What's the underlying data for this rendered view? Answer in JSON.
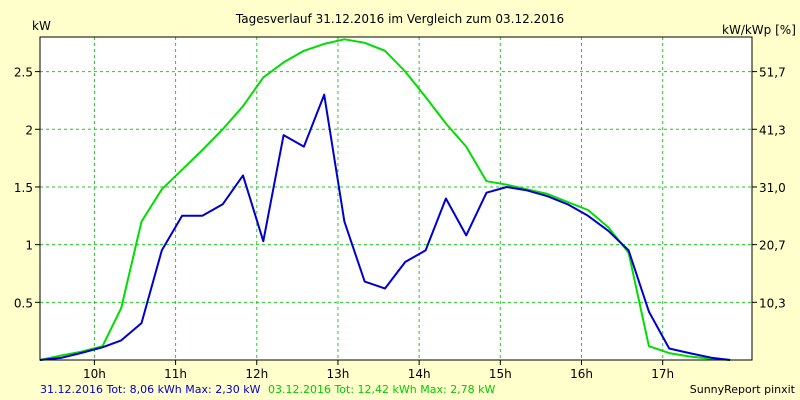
{
  "chart_data": {
    "type": "line",
    "title": "Tagesverlauf 31.12.2016 im Vergleich zum 03.12.2016",
    "ylabel_left": "kW",
    "ylabel_right": "kW/kWp [%]",
    "xlim": [
      9.33,
      18.1
    ],
    "ylim": [
      0,
      2.8
    ],
    "grid": true,
    "x_ticks": [
      {
        "v": 10,
        "label": "10h"
      },
      {
        "v": 11,
        "label": "11h"
      },
      {
        "v": 12,
        "label": "12h"
      },
      {
        "v": 13,
        "label": "13h"
      },
      {
        "v": 14,
        "label": "14h"
      },
      {
        "v": 15,
        "label": "15h"
      },
      {
        "v": 16,
        "label": "16h"
      },
      {
        "v": 17,
        "label": "17h"
      }
    ],
    "y_ticks": [
      {
        "v": 0.5,
        "label": "0.5"
      },
      {
        "v": 1,
        "label": "1"
      },
      {
        "v": 1.5,
        "label": "1.5"
      },
      {
        "v": 2,
        "label": "2"
      },
      {
        "v": 2.5,
        "label": "2.5"
      }
    ],
    "y_ticks_right": [
      {
        "v": 0.5,
        "label": "10,3"
      },
      {
        "v": 1,
        "label": "20,7"
      },
      {
        "v": 1.5,
        "label": "31,0"
      },
      {
        "v": 2,
        "label": "41,3"
      },
      {
        "v": 2.5,
        "label": "51,7"
      }
    ],
    "series": [
      {
        "name": "31.12.2016 Tot: 8,06 kWh Max: 2,30 kW",
        "color": "#0000cc",
        "points": [
          [
            9.33,
            0.0
          ],
          [
            9.6,
            0.02
          ],
          [
            9.83,
            0.06
          ],
          [
            10.1,
            0.11
          ],
          [
            10.33,
            0.17
          ],
          [
            10.58,
            0.32
          ],
          [
            10.83,
            0.95
          ],
          [
            11.08,
            1.25
          ],
          [
            11.33,
            1.25
          ],
          [
            11.58,
            1.35
          ],
          [
            11.83,
            1.6
          ],
          [
            12.08,
            1.03
          ],
          [
            12.33,
            1.95
          ],
          [
            12.58,
            1.85
          ],
          [
            12.83,
            2.3
          ],
          [
            13.08,
            1.2
          ],
          [
            13.33,
            0.68
          ],
          [
            13.58,
            0.62
          ],
          [
            13.83,
            0.85
          ],
          [
            14.08,
            0.95
          ],
          [
            14.33,
            1.4
          ],
          [
            14.58,
            1.08
          ],
          [
            14.83,
            1.45
          ],
          [
            15.08,
            1.5
          ],
          [
            15.33,
            1.47
          ],
          [
            15.58,
            1.42
          ],
          [
            15.83,
            1.35
          ],
          [
            16.08,
            1.25
          ],
          [
            16.33,
            1.12
          ],
          [
            16.58,
            0.95
          ],
          [
            16.83,
            0.42
          ],
          [
            17.08,
            0.1
          ],
          [
            17.33,
            0.06
          ],
          [
            17.6,
            0.02
          ],
          [
            17.83,
            0.0
          ]
        ]
      },
      {
        "name": "03.12.2016 Tot: 12,42 kWh Max: 2,78 kW",
        "color": "#00dd00",
        "points": [
          [
            9.33,
            0.0
          ],
          [
            9.6,
            0.04
          ],
          [
            9.83,
            0.07
          ],
          [
            10.1,
            0.12
          ],
          [
            10.33,
            0.45
          ],
          [
            10.58,
            1.2
          ],
          [
            10.83,
            1.48
          ],
          [
            11.08,
            1.65
          ],
          [
            11.33,
            1.82
          ],
          [
            11.58,
            2.0
          ],
          [
            11.83,
            2.2
          ],
          [
            12.08,
            2.45
          ],
          [
            12.33,
            2.58
          ],
          [
            12.58,
            2.68
          ],
          [
            12.83,
            2.74
          ],
          [
            13.08,
            2.78
          ],
          [
            13.33,
            2.75
          ],
          [
            13.58,
            2.68
          ],
          [
            13.83,
            2.5
          ],
          [
            14.08,
            2.28
          ],
          [
            14.33,
            2.05
          ],
          [
            14.58,
            1.85
          ],
          [
            14.83,
            1.55
          ],
          [
            15.08,
            1.52
          ],
          [
            15.33,
            1.48
          ],
          [
            15.58,
            1.44
          ],
          [
            15.83,
            1.37
          ],
          [
            16.08,
            1.3
          ],
          [
            16.33,
            1.15
          ],
          [
            16.58,
            0.93
          ],
          [
            16.83,
            0.12
          ],
          [
            17.08,
            0.06
          ],
          [
            17.33,
            0.03
          ],
          [
            17.6,
            0.01
          ],
          [
            17.83,
            0.0
          ]
        ]
      }
    ],
    "footer": {
      "series1_label": "31.12.2016 Tot: 8,06 kWh Max: 2,30 kW",
      "series2_label": "03.12.2016 Tot: 12,42 kWh Max: 2,78 kW",
      "brand": "SunnyReport pinxit"
    },
    "colors": {
      "background": "#ffffcc",
      "plot_bg": "#ffffff",
      "grid": "#22cc22",
      "series1": "#0000cc",
      "series2": "#00dd00"
    }
  }
}
